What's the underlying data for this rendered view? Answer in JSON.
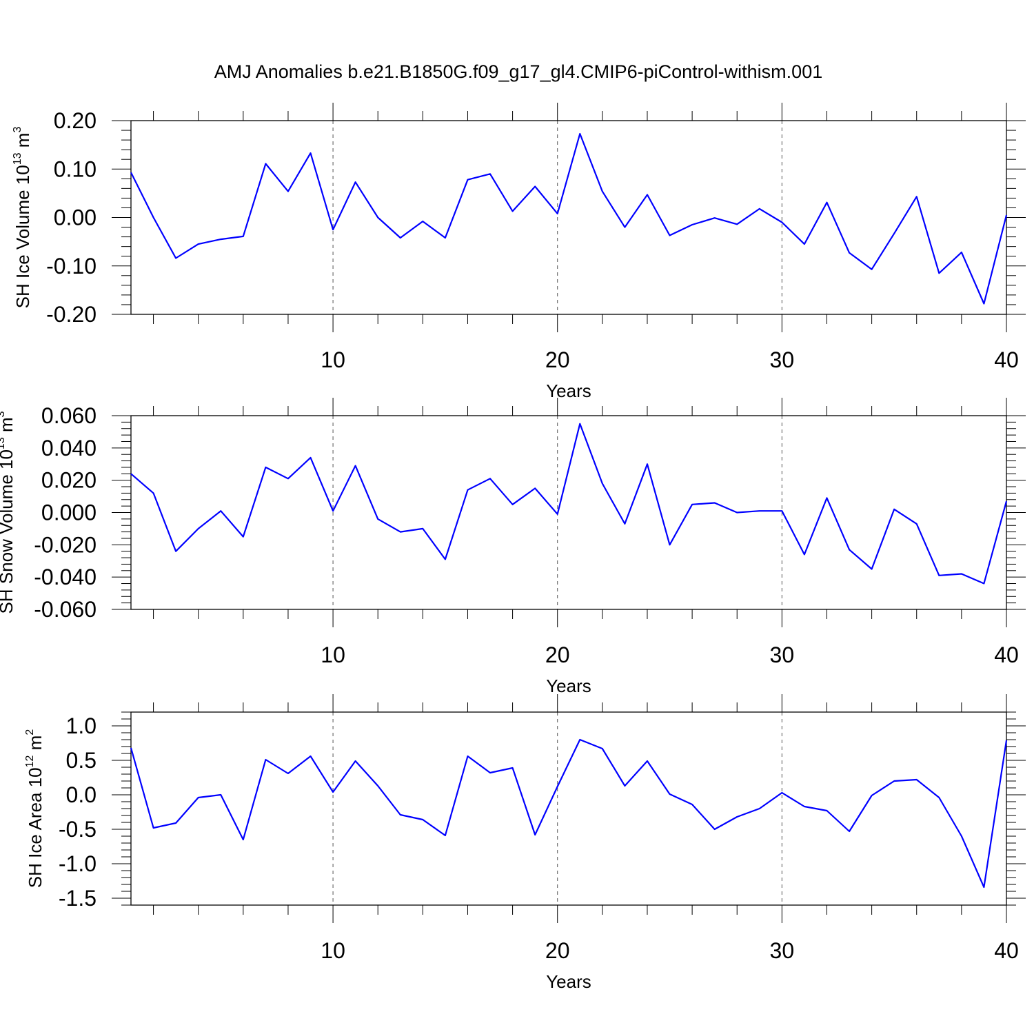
{
  "title": "AMJ Anomalies b.e21.B1850G.f09_g17_gl4.CMIP6-piControl-withism.001",
  "colors": {
    "line": "#0000ff",
    "axis": "#000000",
    "grid": "#555555"
  },
  "chart_data": [
    {
      "type": "line",
      "xlabel": "Years",
      "ylabel": {
        "main": "SH Ice Volume 10",
        "exp": "13",
        "unit": " m",
        "unit_exp": "3"
      },
      "xlim": [
        1,
        40
      ],
      "ylim": [
        -0.2,
        0.2
      ],
      "yticks": [
        -0.2,
        -0.1,
        0.0,
        0.1,
        0.2
      ],
      "ytick_labels": [
        "-0.20",
        "-0.10",
        "0.00",
        "0.10",
        "0.20"
      ],
      "xticks": [
        10,
        20,
        30,
        40
      ],
      "xtick_labels": [
        "10",
        "20",
        "30",
        "40"
      ],
      "x": [
        1,
        2,
        3,
        4,
        5,
        6,
        7,
        8,
        9,
        10,
        11,
        12,
        13,
        14,
        15,
        16,
        17,
        18,
        19,
        20,
        21,
        22,
        23,
        24,
        25,
        26,
        27,
        28,
        29,
        30,
        31,
        32,
        33,
        34,
        35,
        36,
        37,
        38,
        39,
        40
      ],
      "series": [
        {
          "values": [
            0.093,
            0.0,
            -0.084,
            -0.055,
            -0.045,
            -0.039,
            0.111,
            0.054,
            0.133,
            -0.025,
            0.073,
            0.0,
            -0.042,
            -0.008,
            -0.042,
            0.078,
            0.09,
            0.013,
            0.064,
            0.008,
            0.173,
            0.054,
            -0.02,
            0.047,
            -0.037,
            -0.015,
            -0.001,
            -0.014,
            0.018,
            -0.01,
            -0.055,
            0.031,
            -0.073,
            -0.107,
            -0.033,
            0.043,
            -0.115,
            -0.072,
            -0.178,
            0.005
          ]
        }
      ]
    },
    {
      "type": "line",
      "xlabel": "Years",
      "ylabel": {
        "main": "SH Snow Volume 10",
        "exp": "13",
        "unit": " m",
        "unit_exp": "3"
      },
      "xlim": [
        1,
        40
      ],
      "ylim": [
        -0.06,
        0.06
      ],
      "yticks": [
        -0.06,
        -0.04,
        -0.02,
        0.0,
        0.02,
        0.04,
        0.06
      ],
      "ytick_labels": [
        "-0.060",
        "-0.040",
        "-0.020",
        "0.000",
        "0.020",
        "0.040",
        "0.060"
      ],
      "xticks": [
        10,
        20,
        30,
        40
      ],
      "xtick_labels": [
        "10",
        "20",
        "30",
        "40"
      ],
      "x": [
        1,
        2,
        3,
        4,
        5,
        6,
        7,
        8,
        9,
        10,
        11,
        12,
        13,
        14,
        15,
        16,
        17,
        18,
        19,
        20,
        21,
        22,
        23,
        24,
        25,
        26,
        27,
        28,
        29,
        30,
        31,
        32,
        33,
        34,
        35,
        36,
        37,
        38,
        39,
        40
      ],
      "series": [
        {
          "values": [
            0.024,
            0.012,
            -0.024,
            -0.01,
            0.001,
            -0.015,
            0.028,
            0.021,
            0.034,
            0.001,
            0.029,
            -0.004,
            -0.012,
            -0.01,
            -0.029,
            0.014,
            0.021,
            0.005,
            0.015,
            -0.001,
            0.055,
            0.018,
            -0.007,
            0.03,
            -0.02,
            0.005,
            0.006,
            0.0,
            0.001,
            0.001,
            -0.026,
            0.009,
            -0.023,
            -0.035,
            0.002,
            -0.007,
            -0.039,
            -0.038,
            -0.044,
            0.007
          ]
        }
      ]
    },
    {
      "type": "line",
      "xlabel": "Years",
      "ylabel": {
        "main": "SH Ice Area 10",
        "exp": "12",
        "unit": " m",
        "unit_exp": "2"
      },
      "xlim": [
        1,
        40
      ],
      "ylim": [
        -1.6,
        1.2
      ],
      "yticks": [
        -1.5,
        -1.0,
        -0.5,
        0.0,
        0.5,
        1.0
      ],
      "ytick_labels": [
        "-1.5",
        "-1.0",
        "-0.5",
        "0.0",
        "0.5",
        "1.0"
      ],
      "xticks": [
        10,
        20,
        30,
        40
      ],
      "xtick_labels": [
        "10",
        "20",
        "30",
        "40"
      ],
      "x": [
        1,
        2,
        3,
        4,
        5,
        6,
        7,
        8,
        9,
        10,
        11,
        12,
        13,
        14,
        15,
        16,
        17,
        18,
        19,
        20,
        21,
        22,
        23,
        24,
        25,
        26,
        27,
        28,
        29,
        30,
        31,
        32,
        33,
        34,
        35,
        36,
        37,
        38,
        39,
        40
      ],
      "series": [
        {
          "values": [
            0.68,
            -0.48,
            -0.41,
            -0.04,
            0.0,
            -0.65,
            0.51,
            0.31,
            0.56,
            0.04,
            0.49,
            0.13,
            -0.29,
            -0.36,
            -0.59,
            0.56,
            0.32,
            0.39,
            -0.58,
            0.12,
            0.8,
            0.67,
            0.13,
            0.49,
            0.01,
            -0.14,
            -0.5,
            -0.32,
            -0.2,
            0.03,
            -0.17,
            -0.23,
            -0.53,
            -0.01,
            0.2,
            0.22,
            -0.04,
            -0.6,
            -1.34,
            0.79
          ]
        }
      ]
    }
  ]
}
